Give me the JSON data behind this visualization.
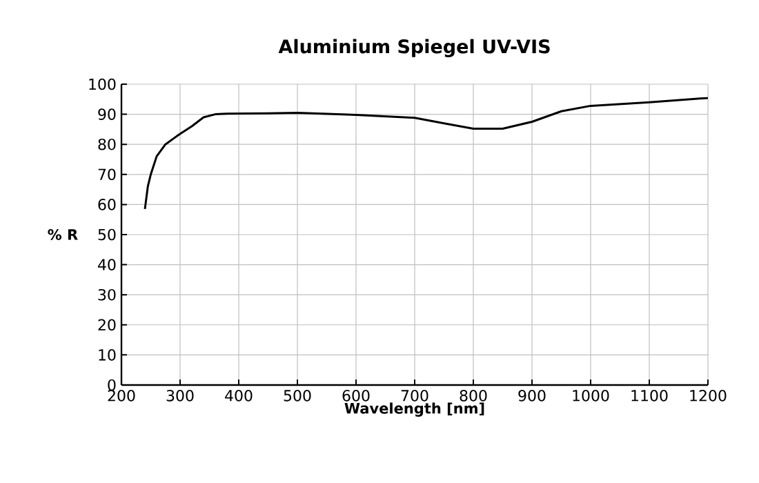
{
  "chart_data": {
    "type": "line",
    "title": "Aluminium Spiegel UV-VIS",
    "xlabel": "Wavelength [nm]",
    "ylabel": "% R",
    "x": [
      240,
      245,
      250,
      260,
      275,
      300,
      320,
      340,
      360,
      380,
      450,
      500,
      600,
      700,
      750,
      800,
      850,
      900,
      950,
      1000,
      1100,
      1200
    ],
    "series": [
      {
        "color": "#000000",
        "values": [
          58.5,
          66,
          70,
          76,
          80,
          83.5,
          86,
          89,
          90,
          90.2,
          90.3,
          90.5,
          89.8,
          88.8,
          87,
          85.2,
          85.2,
          87.5,
          91,
          92.8,
          94,
          95.4
        ]
      }
    ],
    "xlim": [
      200,
      1200
    ],
    "ylim": [
      0,
      100
    ],
    "xticks": [
      200,
      300,
      400,
      500,
      600,
      700,
      800,
      900,
      1000,
      1100,
      1200
    ],
    "yticks": [
      0,
      10,
      20,
      30,
      40,
      50,
      60,
      70,
      80,
      90,
      100
    ],
    "grid": true,
    "legend": false,
    "marker": "none",
    "line_style": "solid"
  }
}
